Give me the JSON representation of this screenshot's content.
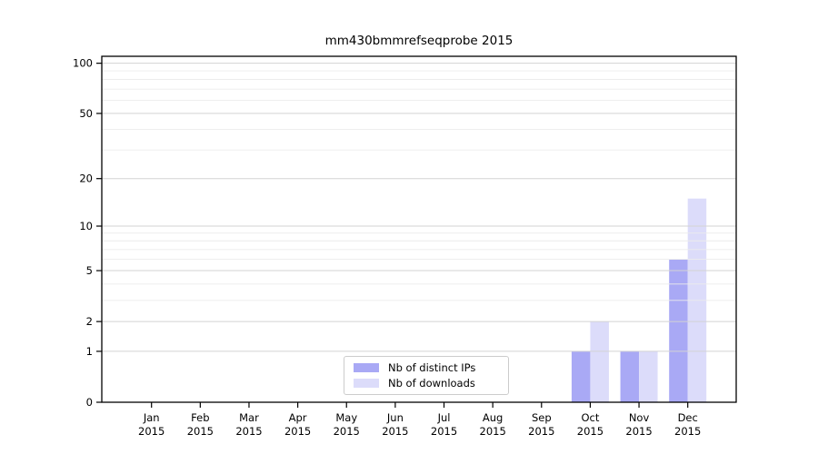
{
  "chart_data": {
    "type": "bar",
    "title": "mm430bmmrefseqprobe 2015",
    "categories": [
      "Jan",
      "Feb",
      "Mar",
      "Apr",
      "May",
      "Jun",
      "Jul",
      "Aug",
      "Sep",
      "Oct",
      "Nov",
      "Dec"
    ],
    "year": "2015",
    "series": [
      {
        "name": "Nb of distinct IPs",
        "color": "#a9a9f5",
        "values": [
          0,
          0,
          0,
          0,
          0,
          0,
          0,
          0,
          0,
          1,
          1,
          6
        ]
      },
      {
        "name": "Nb of downloads",
        "color": "#dcdcfa",
        "values": [
          0,
          0,
          0,
          0,
          0,
          0,
          0,
          0,
          0,
          2,
          1,
          15
        ]
      }
    ],
    "xlabel": "",
    "ylabel": "",
    "yscale": "log1p",
    "ylim": [
      0,
      110
    ],
    "yticks": [
      0,
      1,
      2,
      5,
      10,
      20,
      50,
      100
    ],
    "minor_gridlines": [
      3,
      4,
      6,
      7,
      8,
      9,
      30,
      40,
      60,
      70,
      80,
      90
    ],
    "grid": "on",
    "legend_position": "bottom-center",
    "colors": {
      "major_gridline": "#d3d3d3",
      "minor_gridline": "#ececec",
      "axis": "#000000",
      "legend_border": "#cccccc"
    }
  }
}
